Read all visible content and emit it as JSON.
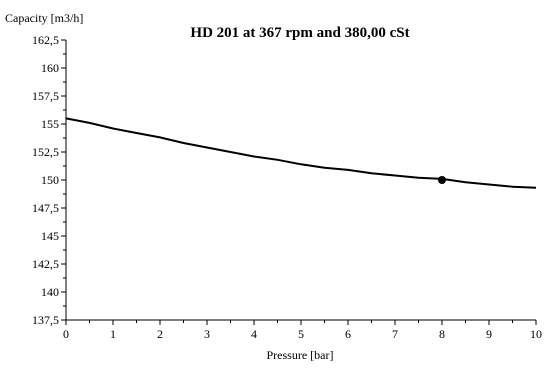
{
  "chart_data": {
    "type": "line",
    "title": "HD 201 at 367 rpm and 380,00 cSt",
    "xlabel": "Pressure [bar]",
    "ylabel": "Capacity [m3/h]",
    "xlim": [
      0,
      10
    ],
    "ylim": [
      137.5,
      162.5
    ],
    "x_ticks": [
      "0",
      "1",
      "2",
      "3",
      "4",
      "5",
      "6",
      "7",
      "8",
      "9",
      "10"
    ],
    "y_ticks": [
      "137,5",
      "140",
      "142,5",
      "145",
      "147,5",
      "150",
      "152,5",
      "155",
      "157,5",
      "160",
      "162,5"
    ],
    "grid": false,
    "series": [
      {
        "x": [
          0,
          0.5,
          1,
          1.5,
          2,
          2.5,
          3,
          3.5,
          4,
          4.5,
          5,
          5.5,
          6,
          6.5,
          7,
          7.5,
          8,
          8.5,
          9,
          9.5,
          10
        ],
        "y": [
          155.5,
          155.1,
          154.6,
          154.2,
          153.8,
          153.3,
          152.9,
          152.5,
          152.1,
          151.8,
          151.4,
          151.1,
          150.9,
          150.6,
          150.4,
          150.2,
          150.1,
          149.8,
          149.6,
          149.4,
          149.3
        ]
      }
    ],
    "marker": {
      "x": 8,
      "y": 150
    },
    "colors": {
      "line": "#000000",
      "marker": "#000000",
      "axis": "#000000"
    }
  }
}
